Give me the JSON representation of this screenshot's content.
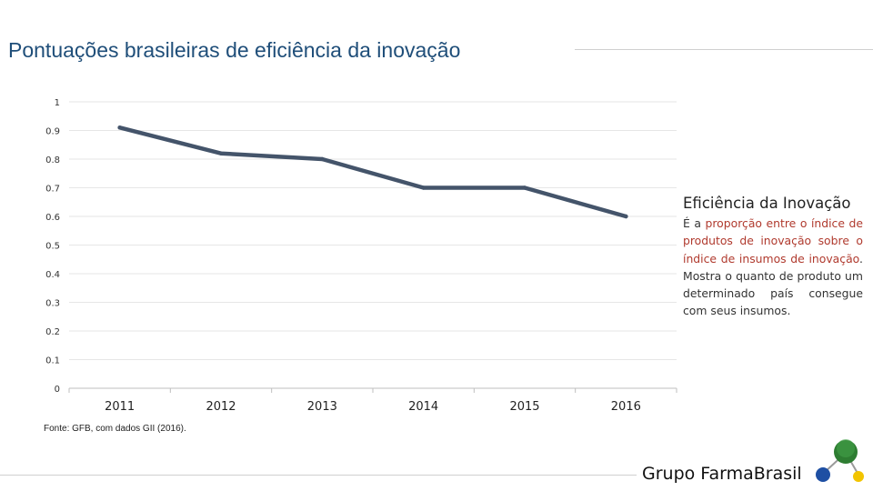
{
  "title": "Pontuações brasileiras de eficiência da inovação",
  "source": "Fonte: GFB, com dados GII (2016).",
  "sidebar": {
    "heading": "Eficiência da Inovação",
    "intro": "É a ",
    "highlight": "proporção entre o índice de produtos de inovação sobre o índice de insumos de inovação",
    "rest": ". Mostra o quanto de produto um determinado país consegue com seus insumos."
  },
  "brand": {
    "name": "Grupo FarmaBrasil"
  },
  "colors": {
    "line": "#44546a",
    "title": "#1f4e79",
    "highlight": "#b03a2e",
    "grid": "#e6e6e6"
  },
  "chart_data": {
    "type": "line",
    "title": "Pontuações brasileiras de eficiência da inovação",
    "categories": [
      "2011",
      "2012",
      "2013",
      "2014",
      "2015",
      "2016"
    ],
    "series": [
      {
        "name": "Eficiência da Inovação",
        "values": [
          0.91,
          0.82,
          0.8,
          0.7,
          0.7,
          0.6
        ]
      }
    ],
    "ylim": [
      0,
      1
    ],
    "yticks": [
      0,
      0.1,
      0.2,
      0.3,
      0.4,
      0.5,
      0.6,
      0.7,
      0.8,
      0.9,
      1
    ],
    "ytick_labels": [
      "0",
      "0.1",
      "0.2",
      "0.3",
      "0.4",
      "0.5",
      "0.6",
      "0.7",
      "0.8",
      "0.9",
      "1"
    ],
    "grid": true,
    "xlabel": "",
    "ylabel": ""
  }
}
